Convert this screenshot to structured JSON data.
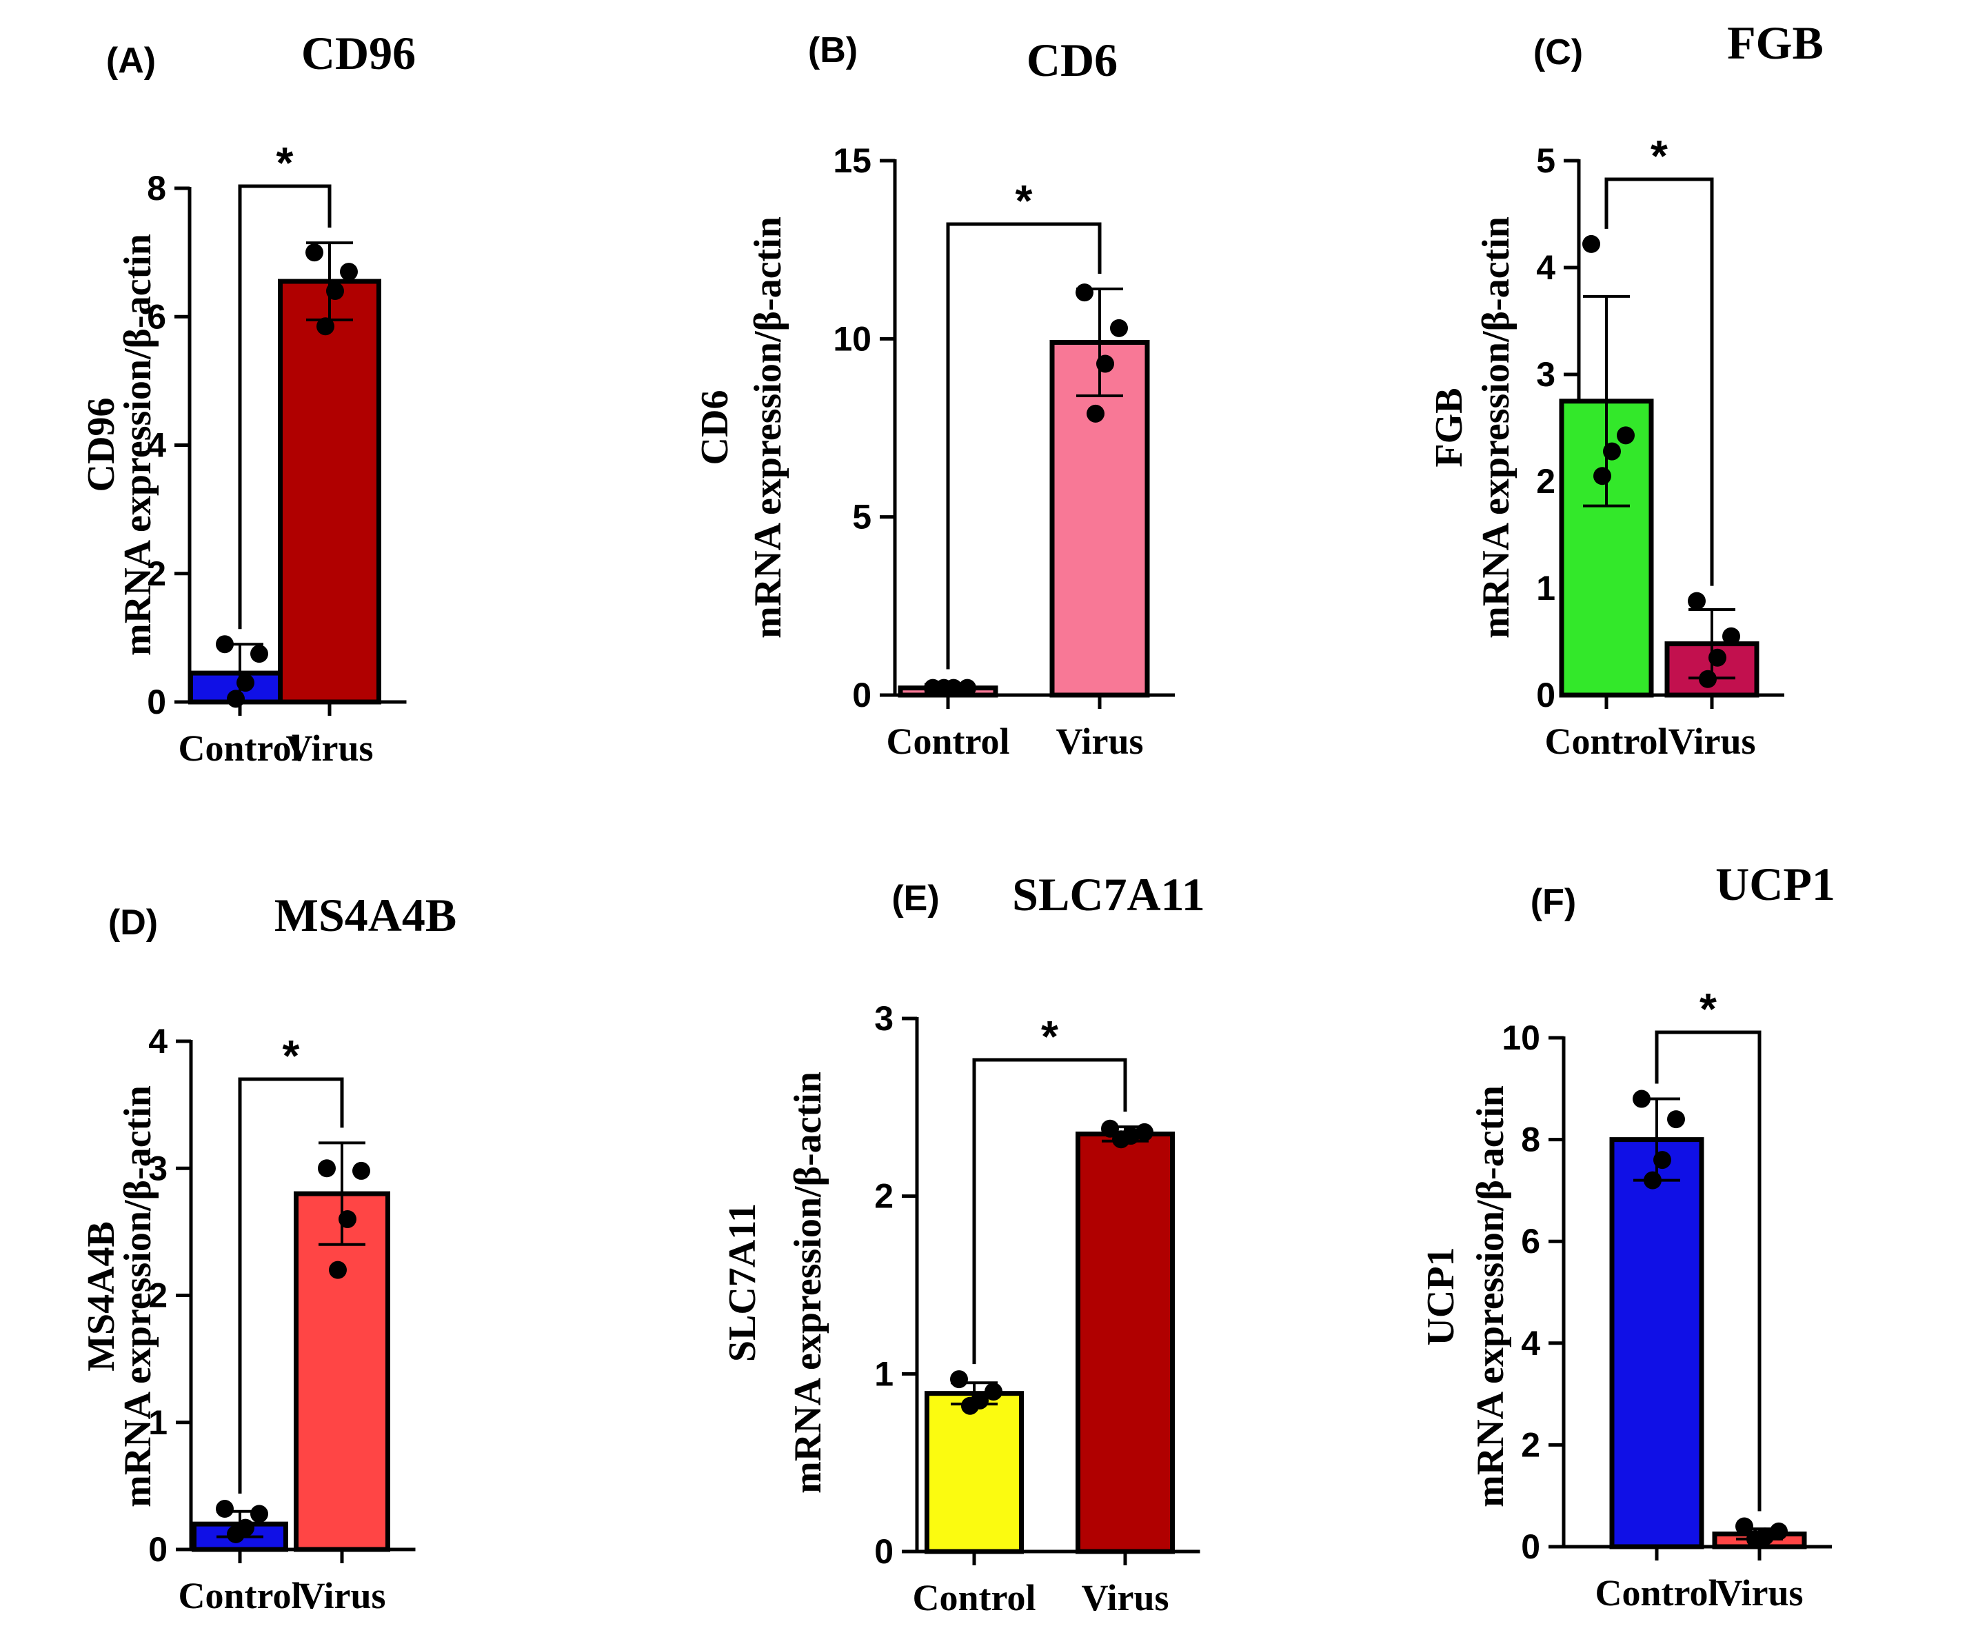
{
  "colors": {
    "blue": "#1010e6",
    "dark_red": "#b00000",
    "pink": "#f87896",
    "green": "#33e82a",
    "crimson": "#c2104e",
    "salmon_red": "#ff4545",
    "yellow": "#fbfb10",
    "axis": "#000000"
  },
  "chart_data": [
    {
      "panel": "(A)",
      "type": "bar",
      "title": "CD96",
      "ylabel_line1": "CD96",
      "ylabel_line2": "mRNA expression/β-actin",
      "ylim": [
        0,
        8
      ],
      "yticks": [
        0,
        2,
        4,
        6,
        8
      ],
      "categories": [
        "Control",
        "Virus"
      ],
      "values": [
        0.45,
        6.55
      ],
      "errors": [
        0.45,
        0.6
      ],
      "points": [
        [
          0.9,
          0.75,
          0.3,
          0.05
        ],
        [
          7.0,
          6.7,
          6.4,
          5.85
        ]
      ],
      "bar_colors": [
        "blue",
        "dark_red"
      ],
      "significance": "*"
    },
    {
      "panel": "(B)",
      "type": "bar",
      "title": "CD6",
      "ylabel_line1": "CD6",
      "ylabel_line2": "mRNA expression/β-actin",
      "ylim": [
        0,
        15
      ],
      "yticks": [
        0,
        5,
        10,
        15
      ],
      "categories": [
        "Control",
        "Virus"
      ],
      "values": [
        0.2,
        9.9
      ],
      "errors": [
        0.1,
        1.5
      ],
      "points": [
        [
          0.2,
          0.2,
          0.2,
          0.2
        ],
        [
          11.3,
          10.3,
          9.3,
          7.9
        ]
      ],
      "bar_colors": [
        "pink",
        "pink"
      ],
      "significance": "*"
    },
    {
      "panel": "(C)",
      "type": "bar",
      "title": "FGB",
      "ylabel_line1": "FGB",
      "ylabel_line2": "mRNA expression/β-actin",
      "ylim": [
        0,
        5
      ],
      "yticks": [
        0,
        1,
        2,
        3,
        4,
        5
      ],
      "categories": [
        "Control",
        "Virus"
      ],
      "values": [
        2.75,
        0.48
      ],
      "errors": [
        0.98,
        0.32
      ],
      "points": [
        [
          4.22,
          2.43,
          2.28,
          2.05
        ],
        [
          0.88,
          0.55,
          0.35,
          0.15
        ]
      ],
      "bar_colors": [
        "green",
        "crimson"
      ],
      "significance": "*"
    },
    {
      "panel": "(D)",
      "type": "bar",
      "title": "MS4A4B",
      "ylabel_line1": "MS4A4B",
      "ylabel_line2": "mRNA expression/β-actin",
      "ylim": [
        0,
        4
      ],
      "yticks": [
        0,
        1,
        2,
        3,
        4
      ],
      "categories": [
        "Control",
        "Virus"
      ],
      "values": [
        0.2,
        2.8
      ],
      "errors": [
        0.1,
        0.4
      ],
      "points": [
        [
          0.32,
          0.28,
          0.17,
          0.12
        ],
        [
          3.0,
          2.98,
          2.6,
          2.2
        ]
      ],
      "bar_colors": [
        "blue",
        "salmon_red"
      ],
      "significance": "*"
    },
    {
      "panel": "(E)",
      "type": "bar",
      "title": "SLC7A11",
      "ylabel_line1": "SLC7A11",
      "ylabel_line2": "mRNA expression/β-actin",
      "ylim": [
        0,
        3
      ],
      "yticks": [
        0,
        1,
        2,
        3
      ],
      "categories": [
        "Control",
        "Virus"
      ],
      "values": [
        0.89,
        2.35
      ],
      "errors": [
        0.06,
        0.04
      ],
      "points": [
        [
          0.97,
          0.9,
          0.85,
          0.82
        ],
        [
          2.38,
          2.36,
          2.34,
          2.32
        ]
      ],
      "bar_colors": [
        "yellow",
        "dark_red"
      ],
      "significance": "*"
    },
    {
      "panel": "(F)",
      "type": "bar",
      "title": "UCP1",
      "ylabel_line1": "UCP1",
      "ylabel_line2": "mRNA expression/β-actin",
      "ylim": [
        0,
        10
      ],
      "yticks": [
        0,
        2,
        4,
        6,
        8,
        10
      ],
      "categories": [
        "Control",
        "Virus"
      ],
      "values": [
        8.0,
        0.25
      ],
      "errors": [
        0.8,
        0.1
      ],
      "points": [
        [
          8.8,
          8.4,
          7.6,
          7.2
        ],
        [
          0.4,
          0.3,
          0.2,
          0.15
        ]
      ],
      "bar_colors": [
        "blue",
        "salmon_red"
      ],
      "significance": "*"
    }
  ]
}
